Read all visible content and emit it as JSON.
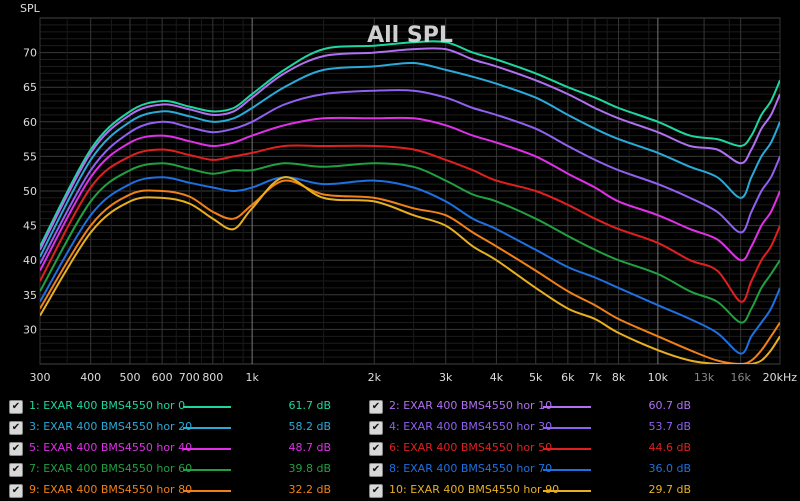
{
  "chart_data": {
    "type": "line",
    "title": "All SPL",
    "ylabel": "SPL",
    "xunit": "Hz",
    "x_scale": "log",
    "xlim": [
      300,
      20000
    ],
    "ylim": [
      25,
      75
    ],
    "grid": true,
    "y_ticks": [
      30,
      35,
      40,
      45,
      50,
      55,
      60,
      65,
      70
    ],
    "x_ticks": [
      {
        "v": 300,
        "label": "300"
      },
      {
        "v": 400,
        "label": "400"
      },
      {
        "v": 500,
        "label": "500"
      },
      {
        "v": 600,
        "label": "600"
      },
      {
        "v": 700,
        "label": "700"
      },
      {
        "v": 800,
        "label": "800"
      },
      {
        "v": 1000,
        "label": "1k"
      },
      {
        "v": 2000,
        "label": "2k"
      },
      {
        "v": 3000,
        "label": "3k"
      },
      {
        "v": 4000,
        "label": "4k"
      },
      {
        "v": 5000,
        "label": "5k"
      },
      {
        "v": 6000,
        "label": "6k"
      },
      {
        "v": 7000,
        "label": "7k"
      },
      {
        "v": 8000,
        "label": "8k"
      },
      {
        "v": 10000,
        "label": "10k"
      },
      {
        "v": 13000,
        "label": "13k"
      },
      {
        "v": 16000,
        "label": "16k"
      },
      {
        "v": 20000,
        "label": "20kHz"
      }
    ],
    "x": [
      300,
      400,
      500,
      600,
      700,
      800,
      900,
      1000,
      1200,
      1500,
      2000,
      2500,
      3000,
      3500,
      4000,
      5000,
      6000,
      7000,
      8000,
      10000,
      12000,
      14000,
      16000,
      17000,
      18000,
      19000,
      20000
    ],
    "series": [
      {
        "name": "1: EXAR 400 BMS4550 hor 0",
        "color": "#1fd6a0",
        "level": "61.7 dB",
        "values": [
          42,
          56,
          61.5,
          63,
          62.2,
          61.5,
          62,
          64,
          67.5,
          70.5,
          71,
          71.5,
          71.5,
          70,
          69,
          67,
          65,
          63.5,
          62,
          60,
          58,
          57.5,
          56.5,
          58,
          61,
          63,
          66
        ]
      },
      {
        "name": "2: EXAR 400 BMS4550 hor 10",
        "color": "#b070f0",
        "level": "60.7 dB",
        "values": [
          41.5,
          55.5,
          61,
          62.5,
          61.8,
          61,
          61.5,
          63.5,
          67,
          69.5,
          70,
          70.5,
          70.5,
          69,
          68,
          66,
          64,
          62,
          60.5,
          58.5,
          56.5,
          56,
          54,
          56,
          59,
          61,
          64
        ]
      },
      {
        "name": "3: EXAR 400 BMS4550 hor 20",
        "color": "#2aaad8",
        "level": "58.2 dB",
        "values": [
          40.5,
          54.5,
          60,
          61.5,
          60.8,
          60,
          60.5,
          62,
          65,
          67.5,
          68,
          68.5,
          67.5,
          66.5,
          65.5,
          63.5,
          61,
          59,
          57.5,
          55.5,
          53.5,
          52,
          49,
          52,
          55,
          57,
          60
        ]
      },
      {
        "name": "4: EXAR 400 BMS4550 hor 30",
        "color": "#9060f0",
        "level": "53.7 dB",
        "values": [
          39.5,
          53,
          58.5,
          60,
          59.2,
          58.5,
          59,
          60,
          62.5,
          64,
          64.5,
          64.5,
          63.5,
          62,
          61,
          59,
          56.5,
          54.5,
          53,
          51,
          49,
          47,
          44,
          47,
          50,
          52,
          55
        ]
      },
      {
        "name": "5: EXAR 400 BMS4550 hor 40",
        "color": "#e030e8",
        "level": "48.7 dB",
        "values": [
          38.5,
          52,
          57,
          58,
          57.2,
          56.5,
          57,
          58,
          59.5,
          60.5,
          60.5,
          60.5,
          59.5,
          58,
          57,
          55,
          52.5,
          50.5,
          48.5,
          46.5,
          44.5,
          43,
          40,
          42,
          45,
          47,
          50
        ]
      },
      {
        "name": "6: EXAR 400 BMS4550 hor 50",
        "color": "#e02020",
        "level": "44.6 dB",
        "values": [
          37,
          50.5,
          55,
          56,
          55.2,
          54.5,
          55,
          55.5,
          56.5,
          56.5,
          56.5,
          56,
          54.5,
          53,
          51.5,
          50,
          48,
          46,
          44.5,
          42.5,
          40,
          38.5,
          34,
          37,
          40,
          42,
          45
        ]
      },
      {
        "name": "7: EXAR 400 BMS4550 hor 60",
        "color": "#20a040",
        "level": "39.8 dB",
        "values": [
          35.5,
          48.5,
          53,
          54,
          53.2,
          52.5,
          53,
          53,
          54,
          53.5,
          54,
          53.5,
          51.5,
          49.5,
          48.5,
          46,
          43.5,
          41.5,
          40,
          38,
          35.5,
          34,
          31,
          33,
          36,
          38,
          40
        ]
      },
      {
        "name": "8: EXAR 400 BMS4550 hor 70",
        "color": "#1e70e0",
        "level": "36.0 dB",
        "values": [
          34,
          46.5,
          51,
          52,
          51.2,
          50.5,
          50,
          50.5,
          52,
          51,
          51.5,
          50.5,
          48.5,
          46,
          44.5,
          41.5,
          39,
          37.5,
          36,
          33.5,
          31.5,
          29.5,
          26.5,
          29,
          31,
          33,
          36
        ]
      },
      {
        "name": "9: EXAR 400 BMS4550 hor 80",
        "color": "#f08018",
        "level": "32.2 dB",
        "values": [
          33,
          45,
          49.5,
          50,
          49.2,
          47,
          46,
          48,
          51.5,
          49.5,
          49,
          47.5,
          46.5,
          44,
          42,
          38.5,
          35.5,
          33.5,
          31.5,
          29,
          27,
          25.5,
          25,
          25.5,
          27,
          29,
          31
        ]
      },
      {
        "name": "10: EXAR 400 BMS4550 hor 90",
        "color": "#e8b020",
        "level": "29.7 dB",
        "values": [
          32,
          44,
          48.5,
          49,
          48.2,
          46,
          44.5,
          47.5,
          52,
          49,
          48.5,
          46.5,
          45,
          42,
          40,
          36,
          33,
          31.5,
          29.5,
          27,
          25.5,
          25,
          25,
          25,
          25.5,
          27,
          29
        ]
      }
    ]
  }
}
